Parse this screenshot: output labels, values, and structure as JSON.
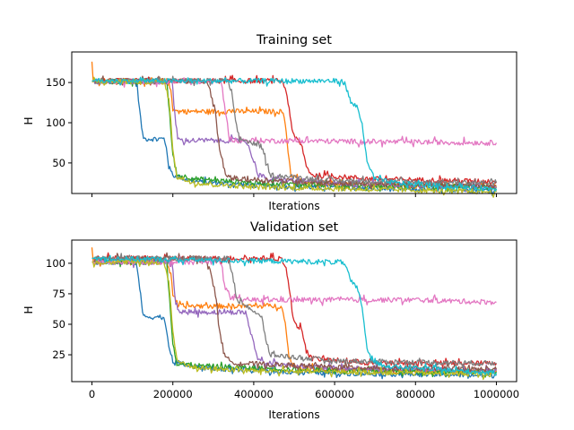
{
  "chart_data": [
    {
      "type": "line",
      "title": "Training set",
      "xlabel": "Iterations",
      "ylabel": "H",
      "xlim": [
        -50000,
        1050000
      ],
      "ylim": [
        12,
        188
      ],
      "xticks": [
        0,
        200000,
        400000,
        600000,
        800000,
        1000000
      ],
      "xtick_labels_shown": false,
      "yticks": [
        50,
        100,
        150
      ],
      "grid": false,
      "series": [
        {
          "color": "#1f77b4",
          "values": [
            [
              0,
              151
            ],
            [
              105000,
              151
            ],
            [
              112000,
              145
            ],
            [
              118000,
              115
            ],
            [
              125000,
              85
            ],
            [
              130000,
              80
            ],
            [
              178000,
              80
            ],
            [
              184000,
              70
            ],
            [
              190000,
              45
            ],
            [
              200000,
              35
            ],
            [
              250000,
              27
            ],
            [
              400000,
              22
            ],
            [
              600000,
              19
            ],
            [
              800000,
              17
            ],
            [
              1000000,
              16
            ]
          ]
        },
        {
          "color": "#ff7f0e",
          "values": [
            [
              0,
              176
            ],
            [
              3000,
              152
            ],
            [
              185000,
              152
            ],
            [
              195000,
              140
            ],
            [
              200000,
              120
            ],
            [
              210000,
              114
            ],
            [
              470000,
              114
            ],
            [
              478000,
              100
            ],
            [
              485000,
              65
            ],
            [
              492000,
              35
            ],
            [
              520000,
              27
            ],
            [
              700000,
              22
            ],
            [
              1000000,
              20
            ]
          ]
        },
        {
          "color": "#2ca02c",
          "values": [
            [
              0,
              151
            ],
            [
              185000,
              151
            ],
            [
              192000,
              110
            ],
            [
              200000,
              60
            ],
            [
              210000,
              35
            ],
            [
              260000,
              30
            ],
            [
              400000,
              25
            ],
            [
              600000,
              22
            ],
            [
              1000000,
              20
            ]
          ]
        },
        {
          "color": "#d62728",
          "values": [
            [
              0,
              152
            ],
            [
              470000,
              152
            ],
            [
              480000,
              140
            ],
            [
              490000,
              110
            ],
            [
              497000,
              85
            ],
            [
              505000,
              80
            ],
            [
              520000,
              70
            ],
            [
              530000,
              45
            ],
            [
              545000,
              35
            ],
            [
              700000,
              30
            ],
            [
              1000000,
              27
            ]
          ]
        },
        {
          "color": "#9467bd",
          "values": [
            [
              0,
              151
            ],
            [
              198000,
              151
            ],
            [
              205000,
              110
            ],
            [
              212000,
              80
            ],
            [
              220000,
              78
            ],
            [
              380000,
              78
            ],
            [
              395000,
              60
            ],
            [
              410000,
              38
            ],
            [
              430000,
              30
            ],
            [
              600000,
              25
            ],
            [
              1000000,
              20
            ]
          ]
        },
        {
          "color": "#8c564b",
          "values": [
            [
              0,
              152
            ],
            [
              280000,
              152
            ],
            [
              292000,
              140
            ],
            [
              305000,
              110
            ],
            [
              318000,
              60
            ],
            [
              330000,
              35
            ],
            [
              360000,
              30
            ],
            [
              600000,
              25
            ],
            [
              1000000,
              22
            ]
          ]
        },
        {
          "color": "#e377c2",
          "values": [
            [
              0,
              151
            ],
            [
              320000,
              151
            ],
            [
              330000,
              115
            ],
            [
              340000,
              80
            ],
            [
              360000,
              78
            ],
            [
              600000,
              77
            ],
            [
              800000,
              76
            ],
            [
              1000000,
              75
            ]
          ]
        },
        {
          "color": "#7f7f7f",
          "values": [
            [
              0,
              152
            ],
            [
              335000,
              152
            ],
            [
              345000,
              140
            ],
            [
              355000,
              100
            ],
            [
              365000,
              80
            ],
            [
              380000,
              78
            ],
            [
              420000,
              70
            ],
            [
              430000,
              50
            ],
            [
              440000,
              35
            ],
            [
              600000,
              28
            ],
            [
              1000000,
              25
            ]
          ]
        },
        {
          "color": "#bcbd22",
          "values": [
            [
              0,
              151
            ],
            [
              178000,
              151
            ],
            [
              190000,
              130
            ],
            [
              200000,
              70
            ],
            [
              210000,
              32
            ],
            [
              260000,
              25
            ],
            [
              400000,
              20
            ],
            [
              600000,
              18
            ],
            [
              800000,
              16
            ],
            [
              1000000,
              14
            ]
          ]
        },
        {
          "color": "#17becf",
          "values": [
            [
              0,
              152
            ],
            [
              610000,
              152
            ],
            [
              625000,
              150
            ],
            [
              640000,
              125
            ],
            [
              655000,
              120
            ],
            [
              668000,
              100
            ],
            [
              680000,
              50
            ],
            [
              700000,
              30
            ],
            [
              750000,
              25
            ],
            [
              900000,
              20
            ],
            [
              1000000,
              18
            ]
          ]
        }
      ]
    },
    {
      "type": "line",
      "title": "Validation set",
      "xlabel": "Iterations",
      "ylabel": "H",
      "xlim": [
        -50000,
        1050000
      ],
      "ylim": [
        3,
        119
      ],
      "xticks": [
        0,
        200000,
        400000,
        600000,
        800000,
        1000000
      ],
      "xtick_labels": [
        "0",
        "200000",
        "400000",
        "600000",
        "800000",
        "1000000"
      ],
      "yticks": [
        25,
        50,
        75,
        100
      ],
      "grid": false,
      "series": [
        {
          "color": "#1f77b4",
          "values": [
            [
              0,
              101
            ],
            [
              105000,
              101
            ],
            [
              112000,
              97
            ],
            [
              118000,
              80
            ],
            [
              125000,
              60
            ],
            [
              130000,
              56
            ],
            [
              178000,
              56
            ],
            [
              184000,
              45
            ],
            [
              190000,
              30
            ],
            [
              200000,
              20
            ],
            [
              250000,
              15
            ],
            [
              400000,
              12
            ],
            [
              600000,
              10
            ],
            [
              800000,
              9
            ],
            [
              1000000,
              8
            ]
          ]
        },
        {
          "color": "#ff7f0e",
          "values": [
            [
              0,
              113
            ],
            [
              3000,
              102
            ],
            [
              185000,
              102
            ],
            [
              195000,
              90
            ],
            [
              200000,
              75
            ],
            [
              210000,
              65
            ],
            [
              470000,
              65
            ],
            [
              478000,
              50
            ],
            [
              485000,
              30
            ],
            [
              492000,
              18
            ],
            [
              520000,
              14
            ],
            [
              700000,
              12
            ],
            [
              1000000,
              11
            ]
          ]
        },
        {
          "color": "#2ca02c",
          "values": [
            [
              0,
              101
            ],
            [
              185000,
              101
            ],
            [
              192000,
              70
            ],
            [
              200000,
              35
            ],
            [
              210000,
              18
            ],
            [
              260000,
              16
            ],
            [
              400000,
              14
            ],
            [
              600000,
              12
            ],
            [
              1000000,
              11
            ]
          ]
        },
        {
          "color": "#d62728",
          "values": [
            [
              0,
              104
            ],
            [
              470000,
              104
            ],
            [
              480000,
              95
            ],
            [
              490000,
              75
            ],
            [
              497000,
              55
            ],
            [
              505000,
              50
            ],
            [
              520000,
              45
            ],
            [
              530000,
              28
            ],
            [
              545000,
              22
            ],
            [
              700000,
              18
            ],
            [
              1000000,
              18
            ]
          ]
        },
        {
          "color": "#9467bd",
          "values": [
            [
              0,
              101
            ],
            [
              198000,
              101
            ],
            [
              205000,
              75
            ],
            [
              212000,
              62
            ],
            [
              220000,
              60
            ],
            [
              380000,
              60
            ],
            [
              395000,
              40
            ],
            [
              410000,
              22
            ],
            [
              430000,
              18
            ],
            [
              600000,
              14
            ],
            [
              1000000,
              12
            ]
          ]
        },
        {
          "color": "#8c564b",
          "values": [
            [
              0,
              104
            ],
            [
              280000,
              104
            ],
            [
              292000,
              95
            ],
            [
              305000,
              75
            ],
            [
              318000,
              40
            ],
            [
              330000,
              22
            ],
            [
              360000,
              18
            ],
            [
              600000,
              15
            ],
            [
              1000000,
              13
            ]
          ]
        },
        {
          "color": "#e377c2",
          "values": [
            [
              0,
              101
            ],
            [
              320000,
              101
            ],
            [
              330000,
              80
            ],
            [
              340000,
              72
            ],
            [
              360000,
              70
            ],
            [
              600000,
              70
            ],
            [
              800000,
              70
            ],
            [
              1000000,
              68
            ]
          ]
        },
        {
          "color": "#7f7f7f",
          "values": [
            [
              0,
              104
            ],
            [
              335000,
              104
            ],
            [
              345000,
              95
            ],
            [
              355000,
              75
            ],
            [
              365000,
              68
            ],
            [
              380000,
              66
            ],
            [
              420000,
              55
            ],
            [
              430000,
              38
            ],
            [
              440000,
              25
            ],
            [
              600000,
              20
            ],
            [
              1000000,
              18
            ]
          ]
        },
        {
          "color": "#bcbd22",
          "values": [
            [
              0,
              101
            ],
            [
              178000,
              101
            ],
            [
              190000,
              85
            ],
            [
              200000,
              45
            ],
            [
              210000,
              20
            ],
            [
              260000,
              14
            ],
            [
              400000,
              12
            ],
            [
              600000,
              11
            ],
            [
              800000,
              10
            ],
            [
              1000000,
              9
            ]
          ]
        },
        {
          "color": "#17becf",
          "values": [
            [
              0,
              104
            ],
            [
              610000,
              101
            ],
            [
              625000,
              100
            ],
            [
              640000,
              85
            ],
            [
              655000,
              80
            ],
            [
              668000,
              65
            ],
            [
              680000,
              30
            ],
            [
              700000,
              18
            ],
            [
              750000,
              15
            ],
            [
              900000,
              12
            ],
            [
              1000000,
              10
            ]
          ]
        }
      ]
    }
  ]
}
